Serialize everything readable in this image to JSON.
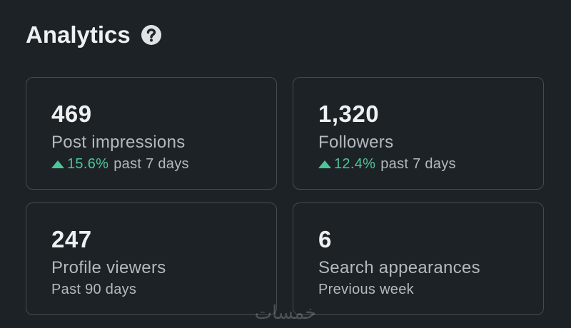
{
  "header": {
    "title": "Analytics"
  },
  "cards": [
    {
      "value": "469",
      "label": "Post impressions",
      "change": "15.6%",
      "period": "past 7 days"
    },
    {
      "value": "1,320",
      "label": "Followers",
      "change": "12.4%",
      "period": "past 7 days"
    },
    {
      "value": "247",
      "label": "Profile viewers",
      "period": "Past 90 days"
    },
    {
      "value": "6",
      "label": "Search appearances",
      "period": "Previous week"
    }
  ],
  "watermark": "خمسات"
}
